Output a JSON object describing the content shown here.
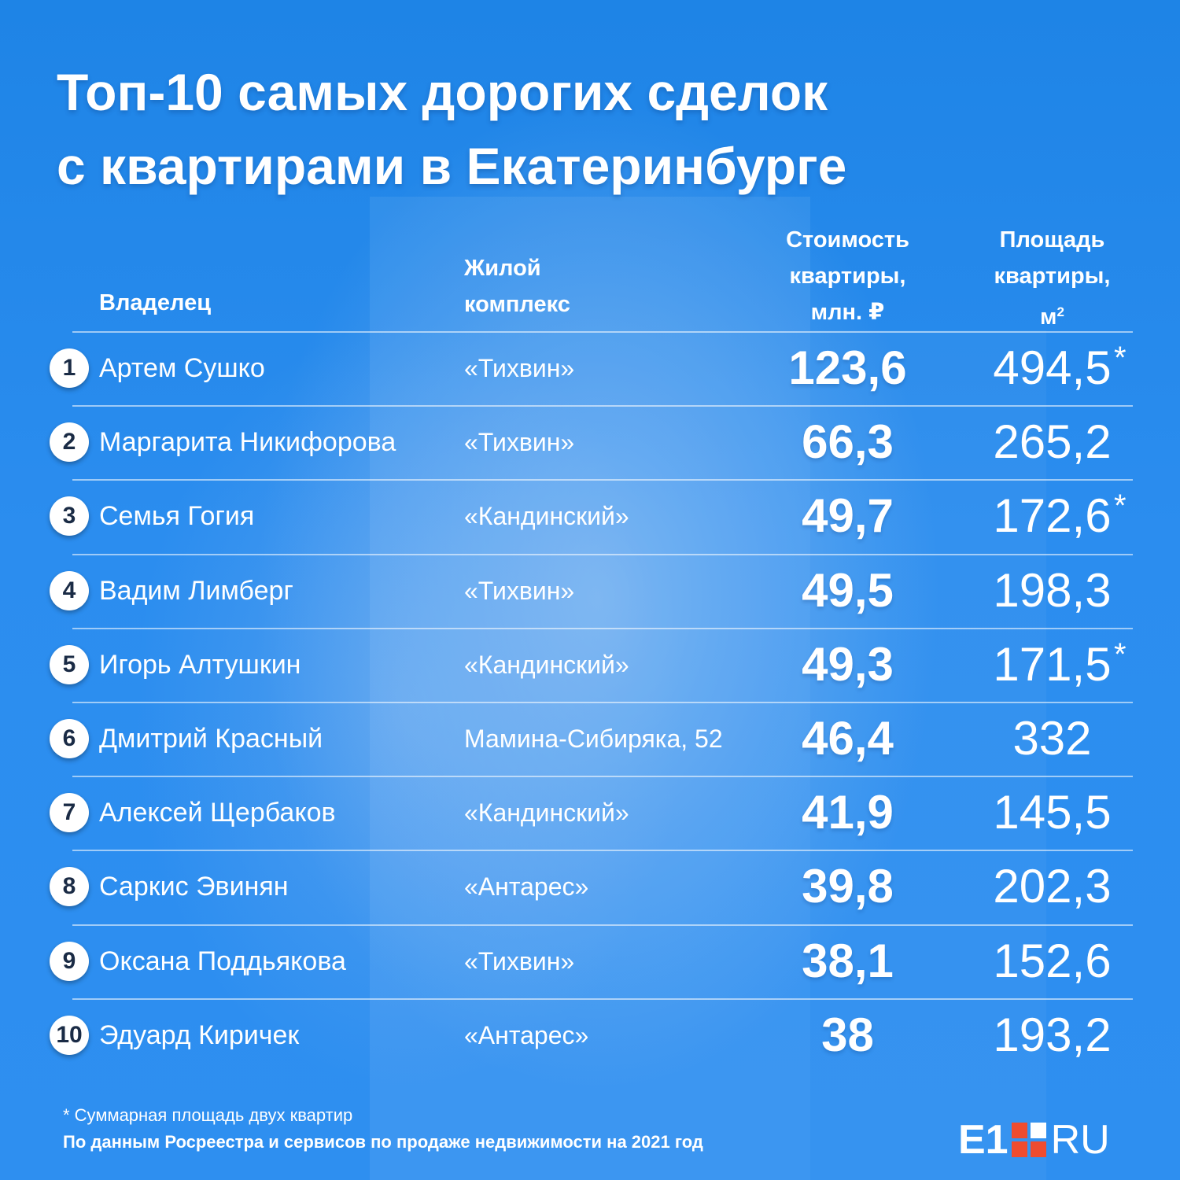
{
  "title_lines": [
    "Топ-10 самых дорогих сделок",
    "с квартирами в Екатеринбурге"
  ],
  "headers": {
    "owner": "Владелец",
    "complex_line1": "Жилой",
    "complex_line2": "комплекс",
    "price_line1": "Стоимость",
    "price_line2": "квартиры,",
    "price_line3": "млн. ₽",
    "area_line1": "Площадь",
    "area_line2": "квартиры,",
    "area_unit": "м",
    "area_unit_sup": "2"
  },
  "chart_data": {
    "type": "table",
    "columns": [
      "Владелец",
      "Жилой комплекс",
      "Стоимость квартиры, млн. ₽",
      "Площадь квартиры, м2"
    ],
    "rows": [
      {
        "rank": "1",
        "owner": "Артем Сушко",
        "complex": "«Тихвин»",
        "price": "123,6",
        "area": "494,5",
        "mark": "*"
      },
      {
        "rank": "2",
        "owner": "Маргарита Никифорова",
        "complex": "«Тихвин»",
        "price": "66,3",
        "area": "265,2",
        "mark": ""
      },
      {
        "rank": "3",
        "owner": "Семья Гогия",
        "complex": "«Кандинский»",
        "price": "49,7",
        "area": "172,6",
        "mark": "*"
      },
      {
        "rank": "4",
        "owner": "Вадим Лимберг",
        "complex": "«Тихвин»",
        "price": "49,5",
        "area": "198,3",
        "mark": ""
      },
      {
        "rank": "5",
        "owner": "Игорь Алтушкин",
        "complex": "«Кандинский»",
        "price": "49,3",
        "area": "171,5",
        "mark": "*"
      },
      {
        "rank": "6",
        "owner": "Дмитрий Красный",
        "complex": "Мамина-Сибиряка, 52",
        "price": "46,4",
        "area": "332",
        "mark": ""
      },
      {
        "rank": "7",
        "owner": "Алексей Щербаков",
        "complex": "«Кандинский»",
        "price": "41,9",
        "area": "145,5",
        "mark": ""
      },
      {
        "rank": "8",
        "owner": "Саркис Эвинян",
        "complex": "«Антарес»",
        "price": "39,8",
        "area": "202,3",
        "mark": ""
      },
      {
        "rank": "9",
        "owner": "Оксана Поддьякова",
        "complex": "«Тихвин»",
        "price": "38,1",
        "area": "152,6",
        "mark": ""
      },
      {
        "rank": "10",
        "owner": "Эдуард Киричек",
        "complex": "«Антарес»",
        "price": "38",
        "area": "193,2",
        "mark": ""
      }
    ]
  },
  "footnote": "* Суммарная площадь двух квартир",
  "source": "По данным Росреестра и сервисов по продаже недвижимости на 2021 год",
  "logo": {
    "brand": "E1",
    "suffix": "RU",
    "accent": "#ef4c2f"
  }
}
